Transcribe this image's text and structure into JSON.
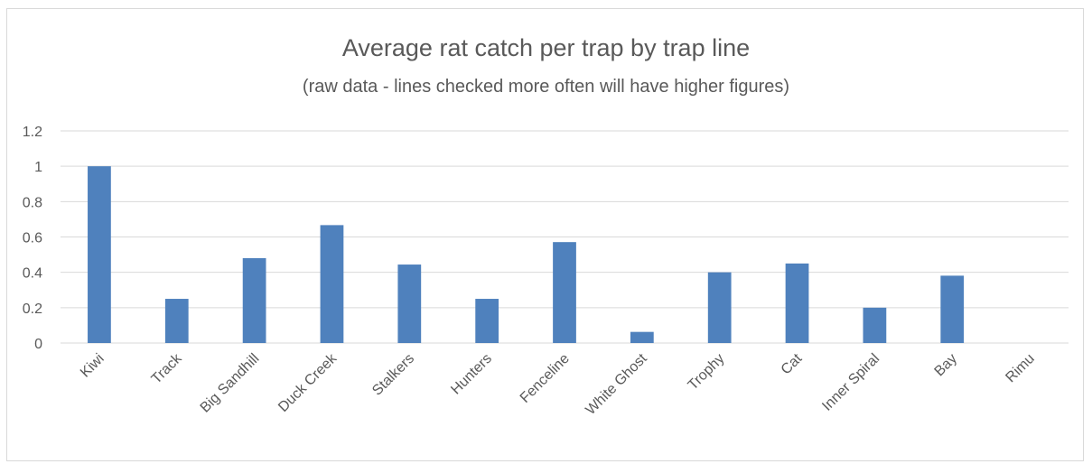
{
  "chart_data": {
    "type": "bar",
    "title": "Average rat catch per trap by trap line",
    "subtitle": "(raw data - lines checked more often will have higher figures)",
    "xlabel": "",
    "ylabel": "",
    "categories": [
      "Kiwi",
      "Track",
      "Big Sandhill",
      "Duck Creek",
      "Stalkers",
      "Hunters",
      "Fenceline",
      "White Ghost",
      "Trophy",
      "Cat",
      "Inner Spiral",
      "Bay",
      "Rimu"
    ],
    "values": [
      1.0,
      0.25,
      0.48,
      0.667,
      0.444,
      0.25,
      0.571,
      0.063,
      0.4,
      0.45,
      0.2,
      0.381,
      0
    ],
    "ylim": [
      0,
      1.2
    ],
    "yticks": [
      "0",
      "0.2",
      "0.4",
      "0.6",
      "0.8",
      "1",
      "1.2"
    ],
    "grid": true,
    "legend": "none",
    "bar_color": "#4f81bd",
    "grid_color": "#d9d9d9"
  }
}
